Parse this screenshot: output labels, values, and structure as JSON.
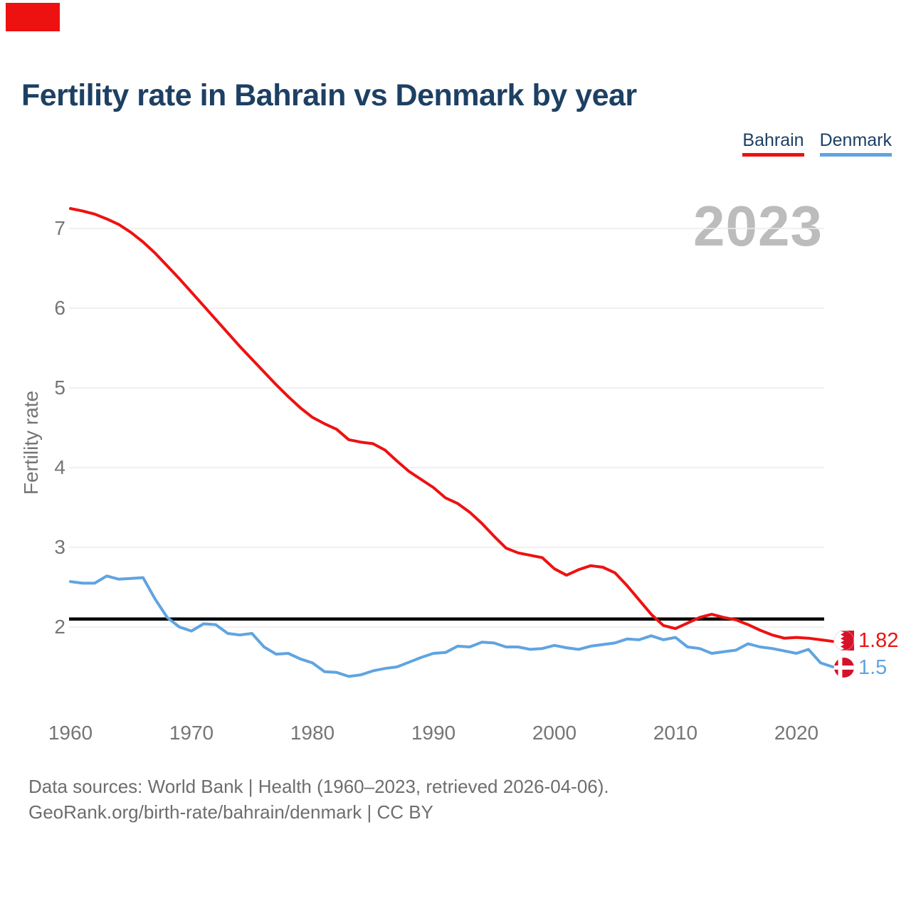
{
  "header": {
    "title": "Fertility rate in Bahrain vs Denmark by year"
  },
  "corner_accent": {
    "color": "#ee1111"
  },
  "legend": {
    "items": [
      {
        "label": "Bahrain",
        "color": "#ee1111"
      },
      {
        "label": "Denmark",
        "color": "#60a4e1"
      }
    ]
  },
  "watermark": "2023",
  "chart_data": {
    "type": "line",
    "title": "Fertility rate in Bahrain vs Denmark by year",
    "xlabel": "",
    "ylabel": "Fertility rate",
    "xlim": [
      1960,
      2023
    ],
    "ylim": [
      1.3,
      7.4
    ],
    "x_ticks": [
      1960,
      1970,
      1980,
      1990,
      2000,
      2010,
      2020
    ],
    "y_ticks": [
      2,
      3,
      4,
      5,
      6,
      7
    ],
    "grid": "horizontal",
    "legend_position": "top-right",
    "x": [
      1960,
      1961,
      1962,
      1963,
      1964,
      1965,
      1966,
      1967,
      1968,
      1969,
      1970,
      1971,
      1972,
      1973,
      1974,
      1975,
      1976,
      1977,
      1978,
      1979,
      1980,
      1981,
      1982,
      1983,
      1984,
      1985,
      1986,
      1987,
      1988,
      1989,
      1990,
      1991,
      1992,
      1993,
      1994,
      1995,
      1996,
      1997,
      1998,
      1999,
      2000,
      2001,
      2002,
      2003,
      2004,
      2005,
      2006,
      2007,
      2008,
      2009,
      2010,
      2011,
      2012,
      2013,
      2014,
      2015,
      2016,
      2017,
      2018,
      2019,
      2020,
      2021,
      2022,
      2023
    ],
    "series": [
      {
        "name": "Bahrain",
        "color": "#ee1111",
        "end_label": "1.82",
        "values": [
          7.25,
          7.22,
          7.18,
          7.12,
          7.05,
          6.95,
          6.83,
          6.69,
          6.53,
          6.37,
          6.2,
          6.03,
          5.86,
          5.69,
          5.52,
          5.36,
          5.2,
          5.04,
          4.89,
          4.75,
          4.63,
          4.55,
          4.48,
          4.35,
          4.32,
          4.3,
          4.22,
          4.08,
          3.95,
          3.85,
          3.75,
          3.62,
          3.55,
          3.44,
          3.3,
          3.14,
          2.99,
          2.93,
          2.9,
          2.87,
          2.73,
          2.65,
          2.72,
          2.77,
          2.75,
          2.68,
          2.52,
          2.34,
          2.16,
          2.02,
          1.98,
          2.05,
          2.12,
          2.16,
          2.12,
          2.09,
          2.03,
          1.96,
          1.9,
          1.86,
          1.87,
          1.86,
          1.84,
          1.82
        ]
      },
      {
        "name": "Denmark",
        "color": "#60a4e1",
        "end_label": "1.5",
        "values": [
          2.57,
          2.55,
          2.55,
          2.64,
          2.6,
          2.61,
          2.62,
          2.35,
          2.12,
          2.0,
          1.95,
          2.04,
          2.03,
          1.92,
          1.9,
          1.92,
          1.75,
          1.66,
          1.67,
          1.6,
          1.55,
          1.44,
          1.43,
          1.38,
          1.4,
          1.45,
          1.48,
          1.5,
          1.56,
          1.62,
          1.67,
          1.68,
          1.76,
          1.75,
          1.81,
          1.8,
          1.75,
          1.75,
          1.72,
          1.73,
          1.77,
          1.74,
          1.72,
          1.76,
          1.78,
          1.8,
          1.85,
          1.84,
          1.89,
          1.84,
          1.87,
          1.75,
          1.73,
          1.67,
          1.69,
          1.71,
          1.79,
          1.75,
          1.73,
          1.7,
          1.67,
          1.72,
          1.55,
          1.5
        ]
      }
    ],
    "reference_line": {
      "value": 2.1,
      "color": "#000000"
    },
    "flag_red": "#d6122b"
  },
  "footer": {
    "line1": "Data sources: World Bank | Health (1960–2023, retrieved 2026-04-06).",
    "line2": "GeoRank.org/birth-rate/bahrain/denmark | CC BY"
  }
}
